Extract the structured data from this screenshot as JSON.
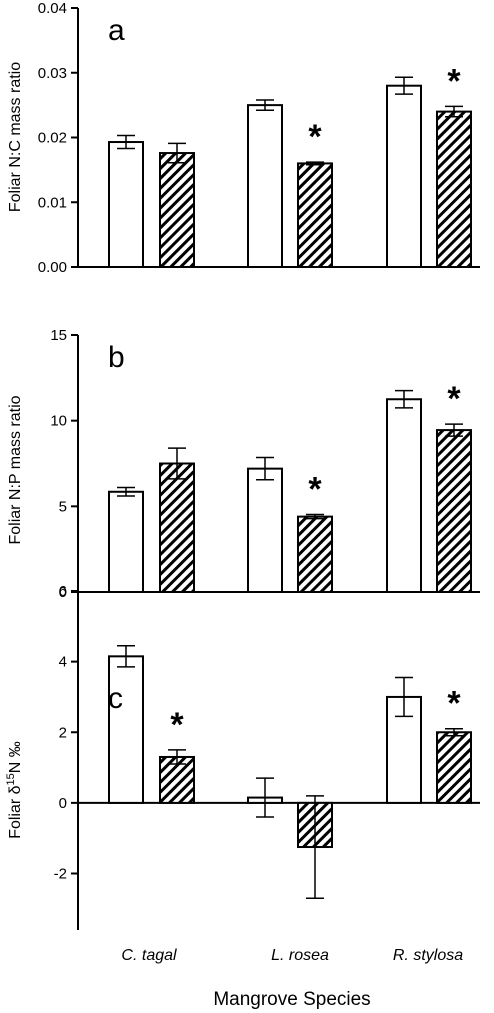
{
  "chart_data": [
    {
      "type": "bar",
      "panel_label": "a",
      "categories": [
        "C. tagal",
        "L. rosea",
        "R. stylosa"
      ],
      "ylabel": "Foliar N:C mass ratio",
      "ylim": [
        0,
        0.04
      ],
      "yticks": [
        "0.00",
        "0.01",
        "0.02",
        "0.03",
        "0.04"
      ],
      "series": [
        {
          "values": [
            0.0193,
            0.025,
            0.028
          ],
          "errors": [
            0.001,
            0.0008,
            0.0013
          ],
          "fill": "white"
        },
        {
          "values": [
            0.0176,
            0.016,
            0.024
          ],
          "errors": [
            0.0015,
            0.0002,
            0.0008
          ],
          "fill": "hatched"
        }
      ],
      "significance": [
        "",
        "*",
        "*"
      ]
    },
    {
      "type": "bar",
      "panel_label": "b",
      "categories": [
        "C. tagal",
        "L. rosea",
        "R. stylosa"
      ],
      "ylabel": "Foliar N:P mass ratio",
      "ylim": [
        0,
        15
      ],
      "yticks": [
        "0",
        "5",
        "10",
        "15"
      ],
      "series": [
        {
          "values": [
            5.85,
            7.2,
            11.25
          ],
          "errors": [
            0.25,
            0.65,
            0.5
          ],
          "fill": "white"
        },
        {
          "values": [
            7.5,
            4.4,
            9.45
          ],
          "errors": [
            0.9,
            0.12,
            0.35
          ],
          "fill": "hatched"
        }
      ],
      "significance": [
        "",
        "*",
        "*"
      ]
    },
    {
      "type": "bar",
      "panel_label": "c",
      "categories": [
        "C. tagal",
        "L. rosea",
        "R. stylosa"
      ],
      "ylabel_parts": [
        "Foliar δ",
        "15",
        "N ‰"
      ],
      "ylim": [
        -3.6,
        6
      ],
      "yticks": [
        "-2",
        "0",
        "2",
        "4",
        "6"
      ],
      "series": [
        {
          "values": [
            4.15,
            0.15,
            3.0
          ],
          "errors": [
            0.3,
            0.55,
            0.55
          ],
          "fill": "white"
        },
        {
          "values": [
            1.3,
            -1.25,
            2.0
          ],
          "errors": [
            0.2,
            1.45,
            0.1
          ],
          "fill": "hatched"
        }
      ],
      "significance": [
        "*",
        "",
        "*"
      ]
    }
  ],
  "xaxis": {
    "title": "Mangrove Species",
    "categories": [
      "C. tagal",
      "L. rosea",
      "R. stylosa"
    ]
  },
  "colors": {
    "bar_fill_open": "#ffffff",
    "stroke": "#000000"
  }
}
